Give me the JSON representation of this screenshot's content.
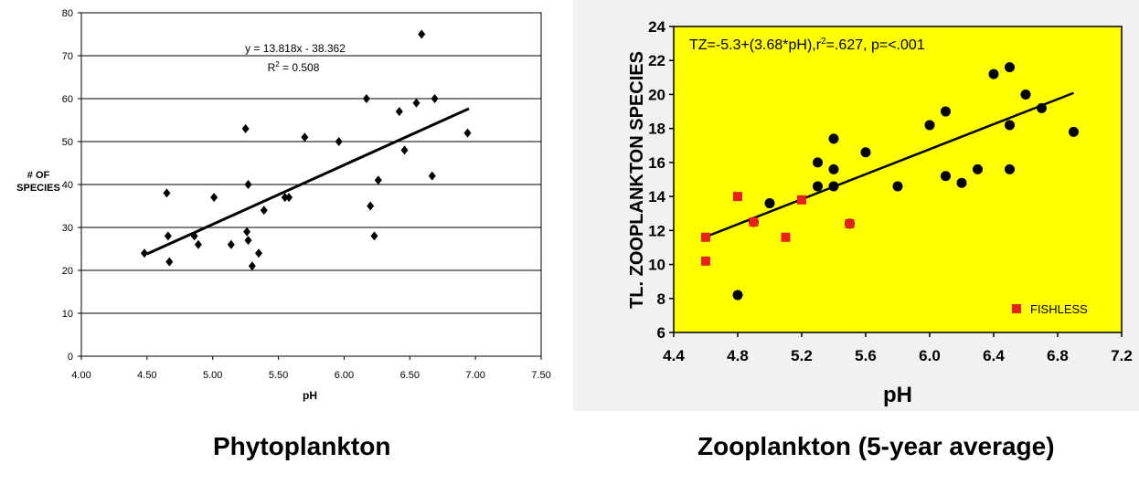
{
  "captions": {
    "left": "Phytoplankton",
    "right": "Zooplankton (5-year average)"
  },
  "chart_data": [
    {
      "type": "scatter",
      "title": "",
      "xlabel": "pH",
      "ylabel": "# OF SPECIES",
      "xlim": [
        4.0,
        7.5
      ],
      "ylim": [
        0,
        80
      ],
      "x_ticks": [
        "4.00",
        "4.50",
        "5.00",
        "5.50",
        "6.00",
        "6.50",
        "7.00",
        "7.50"
      ],
      "y_ticks": [
        "0",
        "10",
        "20",
        "30",
        "40",
        "50",
        "60",
        "70",
        "80"
      ],
      "grid": "horizontal",
      "plot_background": "#ffffff",
      "marker": "diamond",
      "marker_color": "#000000",
      "annotation": {
        "equation": "y = 13.818x - 38.362",
        "r2_label": "R",
        "r2_sup": "2",
        "r2_value": " = 0.508"
      },
      "trendline": {
        "slope": 13.818,
        "intercept": -38.362,
        "x_range": [
          4.5,
          6.95
        ]
      },
      "points": [
        [
          4.48,
          24
        ],
        [
          4.65,
          38
        ],
        [
          4.66,
          28
        ],
        [
          4.67,
          22
        ],
        [
          4.86,
          28
        ],
        [
          4.89,
          26
        ],
        [
          5.01,
          37
        ],
        [
          5.14,
          26
        ],
        [
          5.25,
          53
        ],
        [
          5.26,
          29
        ],
        [
          5.27,
          27
        ],
        [
          5.27,
          40
        ],
        [
          5.3,
          21
        ],
        [
          5.35,
          24
        ],
        [
          5.39,
          34
        ],
        [
          5.55,
          37
        ],
        [
          5.58,
          37
        ],
        [
          5.7,
          51
        ],
        [
          5.96,
          50
        ],
        [
          6.17,
          60
        ],
        [
          6.2,
          35
        ],
        [
          6.23,
          28
        ],
        [
          6.26,
          41
        ],
        [
          6.42,
          57
        ],
        [
          6.46,
          48
        ],
        [
          6.55,
          59
        ],
        [
          6.59,
          75
        ],
        [
          6.67,
          42
        ],
        [
          6.69,
          60
        ],
        [
          6.94,
          52
        ]
      ]
    },
    {
      "type": "scatter",
      "title": "",
      "xlabel": "pH",
      "ylabel": "TL. ZOOPLANKTON SPECIES",
      "xlim": [
        4.4,
        7.2
      ],
      "ylim": [
        6,
        24
      ],
      "x_ticks": [
        "4.4",
        "4.8",
        "5.2",
        "5.6",
        "6.0",
        "6.4",
        "6.8",
        "7.2"
      ],
      "y_ticks": [
        "6",
        "8",
        "10",
        "12",
        "14",
        "16",
        "18",
        "20",
        "22",
        "24"
      ],
      "grid": "none",
      "plot_background": "#ffff00",
      "annotation": {
        "text_a": "TZ=-5.3+(3.68*pH),r",
        "sup": "2",
        "text_b": "=.627, p=<.001"
      },
      "trendline": {
        "slope": 3.68,
        "intercept": -5.3,
        "x_range": [
          4.6,
          6.9
        ]
      },
      "legend": {
        "label": "FISHLESS",
        "placement": "bottom-right"
      },
      "series": [
        {
          "marker": "circle",
          "color": "#000000",
          "points": [
            [
              4.8,
              8.2
            ],
            [
              4.9,
              12.5
            ],
            [
              5.0,
              13.6
            ],
            [
              5.3,
              16.0
            ],
            [
              5.3,
              14.6
            ],
            [
              5.4,
              17.4
            ],
            [
              5.4,
              15.6
            ],
            [
              5.4,
              14.6
            ],
            [
              5.5,
              12.4
            ],
            [
              5.6,
              16.6
            ],
            [
              5.8,
              14.6
            ],
            [
              6.0,
              18.2
            ],
            [
              6.1,
              19.0
            ],
            [
              6.1,
              15.2
            ],
            [
              6.2,
              14.8
            ],
            [
              6.3,
              15.6
            ],
            [
              6.4,
              21.2
            ],
            [
              6.5,
              21.6
            ],
            [
              6.5,
              18.2
            ],
            [
              6.5,
              15.6
            ],
            [
              6.6,
              20.0
            ],
            [
              6.7,
              19.2
            ],
            [
              6.9,
              17.8
            ]
          ]
        },
        {
          "name": "FISHLESS",
          "marker": "square",
          "color": "#e8201c",
          "points": [
            [
              4.6,
              10.2
            ],
            [
              4.6,
              11.6
            ],
            [
              4.8,
              14.0
            ],
            [
              4.9,
              12.5
            ],
            [
              5.1,
              11.6
            ],
            [
              5.2,
              13.8
            ],
            [
              5.5,
              12.4
            ]
          ]
        }
      ]
    }
  ]
}
